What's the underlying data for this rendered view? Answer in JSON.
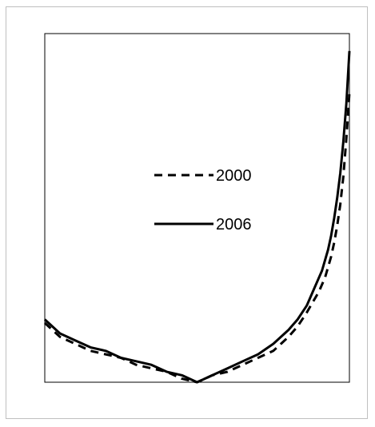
{
  "chart_data": {
    "type": "line",
    "title": "",
    "xlabel": "",
    "ylabel": "",
    "xlim": [
      0,
      100
    ],
    "ylim": [
      0,
      100
    ],
    "grid": false,
    "legend_position": "center",
    "series": [
      {
        "name": "2000",
        "style": "dashed",
        "color": "#000000",
        "x": [
          0,
          5,
          10,
          15,
          20,
          25,
          30,
          35,
          40,
          45,
          50,
          55,
          60,
          65,
          70,
          75,
          80,
          83,
          86,
          88,
          90,
          91,
          92,
          93,
          94,
          95,
          96,
          97,
          98,
          99,
          100
        ],
        "y": [
          17,
          13,
          11,
          9,
          8,
          7,
          5,
          4,
          3,
          1,
          0,
          2,
          3,
          5,
          7,
          9,
          13,
          16,
          20,
          23,
          26,
          28,
          30,
          33,
          36,
          40,
          45,
          51,
          59,
          70,
          83
        ]
      },
      {
        "name": "2006",
        "style": "solid",
        "color": "#000000",
        "x": [
          0,
          5,
          10,
          15,
          20,
          25,
          30,
          35,
          40,
          45,
          50,
          55,
          60,
          65,
          70,
          75,
          80,
          83,
          86,
          88,
          90,
          91,
          92,
          93,
          94,
          95,
          96,
          97,
          98,
          99,
          100
        ],
        "y": [
          18,
          14,
          12,
          10,
          9,
          7,
          6,
          5,
          3,
          2,
          0,
          2,
          4,
          6,
          8,
          11,
          15,
          18,
          22,
          26,
          30,
          32,
          35,
          38,
          42,
          47,
          53,
          60,
          69,
          80,
          95
        ]
      }
    ]
  }
}
